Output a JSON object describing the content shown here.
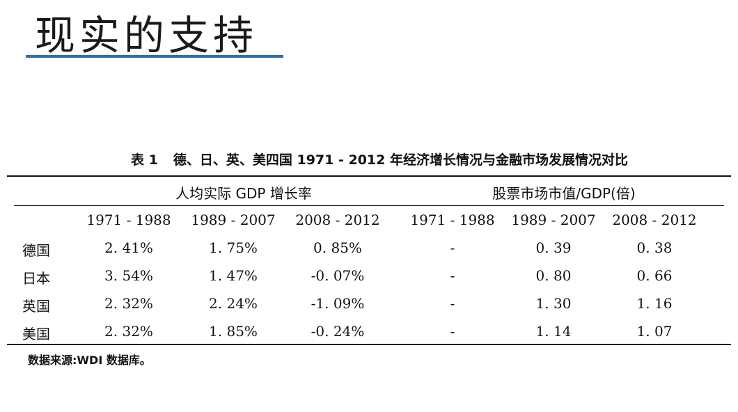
{
  "slide": {
    "title": "现实的支持"
  },
  "table": {
    "number": "表 1",
    "caption": "德、日、英、美四国 1971 - 2012 年经济增长情况与金融市场发展情况对比",
    "group_headers": [
      "人均实际 GDP 增长率",
      "股票市场市值/GDP(倍)"
    ],
    "periods": [
      "1971 - 1988",
      "1989 - 2007",
      "2008 - 2012",
      "1971 - 1988",
      "1989 - 2007",
      "2008 - 2012"
    ],
    "rows": [
      {
        "country": "德国",
        "cells": [
          "2. 41%",
          "1. 75%",
          "0. 85%",
          "-",
          "0. 39",
          "0. 38"
        ]
      },
      {
        "country": "日本",
        "cells": [
          "3. 54%",
          "1. 47%",
          "-0. 07%",
          "-",
          "0. 80",
          "0. 66"
        ]
      },
      {
        "country": "英国",
        "cells": [
          "2. 32%",
          "2. 24%",
          "-1. 09%",
          "-",
          "1. 30",
          "1. 16"
        ]
      },
      {
        "country": "美国",
        "cells": [
          "2. 32%",
          "1. 85%",
          "-0. 24%",
          "-",
          "1. 14",
          "1. 07"
        ]
      }
    ],
    "source": "数据来源:WDI 数据库。"
  },
  "colors": {
    "title_rule": "#2f6fb8"
  }
}
